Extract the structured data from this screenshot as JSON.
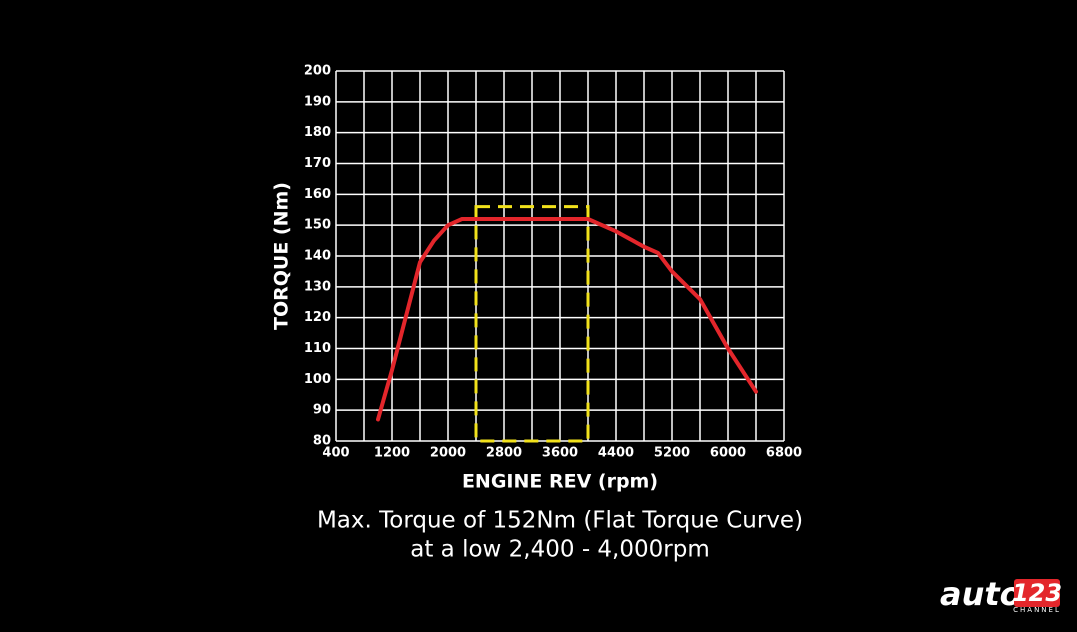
{
  "chart_data": {
    "type": "line",
    "x_label": "ENGINE REV (rpm)",
    "y_label": "TORQUE (Nm)",
    "x": [
      1000,
      1200,
      1600,
      1800,
      2000,
      2200,
      2400,
      2800,
      3200,
      3600,
      4000,
      4400,
      4800,
      5000,
      5200,
      5600,
      6000,
      6400
    ],
    "series": [
      {
        "color": "#e3262b",
        "values": [
          87,
          103,
          138,
          145,
          150,
          152,
          152,
          152,
          152,
          152,
          152,
          148,
          143,
          141,
          135,
          126,
          110,
          96
        ]
      }
    ],
    "xlim": [
      400,
      6800
    ],
    "xticks": [
      400,
      1200,
      2000,
      2800,
      3600,
      4400,
      5200,
      6000,
      6800
    ],
    "xminor": [
      800,
      1600,
      2400,
      3200,
      4000,
      4800,
      5600,
      6400
    ],
    "ylim": [
      80,
      200
    ],
    "yticks": [
      80,
      90,
      100,
      110,
      120,
      130,
      140,
      150,
      160,
      170,
      180,
      190,
      200
    ],
    "grid": true,
    "highlight": {
      "x": [
        2400,
        4000
      ],
      "y": [
        80,
        156
      ],
      "color": "#f2e21b"
    },
    "caption": [
      "Max. Torque of 152Nm (Flat Torque Curve)",
      "at a low 2,400 - 4,000rpm"
    ]
  },
  "logo": {
    "text": "auto",
    "number": "123",
    "sub": "CHANNEL"
  }
}
